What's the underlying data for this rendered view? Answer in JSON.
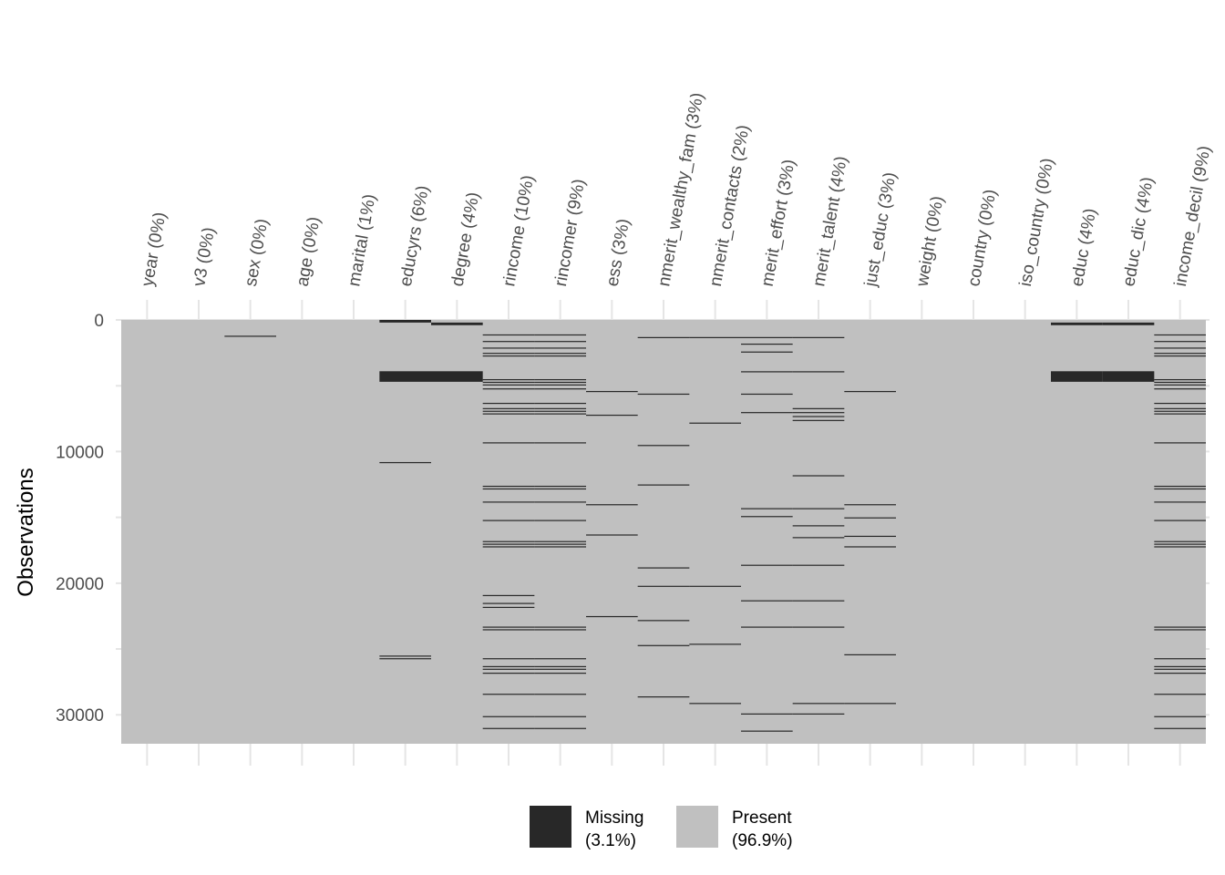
{
  "chart_data": {
    "type": "heatmap",
    "title": "",
    "xlabel": "",
    "ylabel": "Observations",
    "ylim": [
      0,
      32200
    ],
    "n_obs": 32200,
    "y_ticks": [
      0,
      10000,
      20000,
      30000
    ],
    "y_minor_ticks": [
      5000,
      15000,
      25000
    ],
    "grid": true,
    "colors": {
      "missing": "#282828",
      "present": "#c0c0c0",
      "grid": "#e5e5e5"
    },
    "columns": [
      "year (0%)",
      "v3 (0%)",
      "sex (0%)",
      "age (0%)",
      "marital (1%)",
      "educyrs (6%)",
      "degree (4%)",
      "rincome (10%)",
      "rincomer (9%)",
      "ess (3%)",
      "nmerit_wealthy_fam (3%)",
      "nmerit_contacts (2%)",
      "merit_effort (3%)",
      "merit_talent (4%)",
      "just_educ (3%)",
      "weight (0%)",
      "country (0%)",
      "iso_country (0%)",
      "educ (4%)",
      "educ_dic (4%)",
      "income_decil (9%)"
    ],
    "missing_rows": [
      [],
      [],
      [
        [
          1200,
          60
        ]
      ],
      [],
      [],
      [
        [
          0,
          200
        ],
        [
          3900,
          800
        ],
        [
          10800,
          60
        ],
        [
          25500,
          60
        ],
        [
          25700,
          60
        ]
      ],
      [
        [
          200,
          200
        ],
        [
          3900,
          800
        ]
      ],
      [
        [
          1100,
          60
        ],
        [
          1600,
          60
        ],
        [
          2100,
          60
        ],
        [
          2500,
          60
        ],
        [
          2700,
          60
        ],
        [
          4500,
          60
        ],
        [
          4700,
          60
        ],
        [
          4900,
          60
        ],
        [
          5200,
          60
        ],
        [
          6300,
          60
        ],
        [
          6700,
          60
        ],
        [
          6900,
          60
        ],
        [
          7100,
          60
        ],
        [
          9300,
          60
        ],
        [
          12600,
          60
        ],
        [
          12800,
          60
        ],
        [
          13800,
          60
        ],
        [
          15200,
          60
        ],
        [
          16800,
          60
        ],
        [
          17000,
          60
        ],
        [
          17200,
          60
        ],
        [
          20900,
          60
        ],
        [
          21500,
          60
        ],
        [
          21800,
          60
        ],
        [
          23300,
          60
        ],
        [
          23500,
          60
        ],
        [
          25700,
          60
        ],
        [
          26300,
          60
        ],
        [
          26500,
          60
        ],
        [
          26800,
          60
        ],
        [
          28400,
          60
        ],
        [
          30100,
          60
        ],
        [
          31000,
          60
        ]
      ],
      [
        [
          1100,
          60
        ],
        [
          1600,
          60
        ],
        [
          2100,
          60
        ],
        [
          2500,
          60
        ],
        [
          2700,
          60
        ],
        [
          4500,
          60
        ],
        [
          4700,
          60
        ],
        [
          4900,
          60
        ],
        [
          5200,
          60
        ],
        [
          6300,
          60
        ],
        [
          6700,
          60
        ],
        [
          6900,
          60
        ],
        [
          7100,
          60
        ],
        [
          9300,
          60
        ],
        [
          12600,
          60
        ],
        [
          12800,
          60
        ],
        [
          13800,
          60
        ],
        [
          15200,
          60
        ],
        [
          16800,
          60
        ],
        [
          17000,
          60
        ],
        [
          17200,
          60
        ],
        [
          23300,
          60
        ],
        [
          23500,
          60
        ],
        [
          25700,
          60
        ],
        [
          26300,
          60
        ],
        [
          26500,
          60
        ],
        [
          26800,
          60
        ],
        [
          28400,
          60
        ],
        [
          30100,
          60
        ],
        [
          31000,
          60
        ]
      ],
      [
        [
          5400,
          60
        ],
        [
          7200,
          60
        ],
        [
          14000,
          60
        ],
        [
          16300,
          60
        ],
        [
          22500,
          60
        ]
      ],
      [
        [
          1300,
          60
        ],
        [
          5600,
          60
        ],
        [
          9500,
          60
        ],
        [
          12500,
          60
        ],
        [
          18800,
          60
        ],
        [
          20200,
          60
        ],
        [
          22800,
          60
        ],
        [
          24700,
          60
        ],
        [
          28600,
          60
        ]
      ],
      [
        [
          1300,
          60
        ],
        [
          7800,
          60
        ],
        [
          20200,
          60
        ],
        [
          24600,
          60
        ],
        [
          29100,
          60
        ]
      ],
      [
        [
          1300,
          60
        ],
        [
          1800,
          60
        ],
        [
          2400,
          60
        ],
        [
          3900,
          60
        ],
        [
          5600,
          60
        ],
        [
          7000,
          60
        ],
        [
          14300,
          60
        ],
        [
          14900,
          60
        ],
        [
          18600,
          60
        ],
        [
          21300,
          60
        ],
        [
          23300,
          60
        ],
        [
          29900,
          60
        ],
        [
          31200,
          60
        ]
      ],
      [
        [
          1300,
          60
        ],
        [
          3900,
          60
        ],
        [
          6700,
          60
        ],
        [
          7000,
          60
        ],
        [
          7300,
          60
        ],
        [
          7600,
          60
        ],
        [
          11800,
          60
        ],
        [
          14300,
          60
        ],
        [
          15600,
          60
        ],
        [
          16500,
          60
        ],
        [
          18600,
          60
        ],
        [
          21300,
          60
        ],
        [
          23300,
          60
        ],
        [
          29100,
          60
        ],
        [
          29900,
          60
        ]
      ],
      [
        [
          5400,
          60
        ],
        [
          14000,
          60
        ],
        [
          15000,
          60
        ],
        [
          16400,
          60
        ],
        [
          17200,
          60
        ],
        [
          25400,
          60
        ],
        [
          29100,
          60
        ]
      ],
      [],
      [],
      [],
      [
        [
          200,
          200
        ],
        [
          3900,
          800
        ]
      ],
      [
        [
          200,
          200
        ],
        [
          3900,
          800
        ]
      ],
      [
        [
          1100,
          60
        ],
        [
          1600,
          60
        ],
        [
          2100,
          60
        ],
        [
          2500,
          60
        ],
        [
          2700,
          60
        ],
        [
          4500,
          60
        ],
        [
          4700,
          60
        ],
        [
          4900,
          60
        ],
        [
          5200,
          60
        ],
        [
          6300,
          60
        ],
        [
          6700,
          60
        ],
        [
          6900,
          60
        ],
        [
          7100,
          60
        ],
        [
          9300,
          60
        ],
        [
          12600,
          60
        ],
        [
          12800,
          60
        ],
        [
          13800,
          60
        ],
        [
          15200,
          60
        ],
        [
          16800,
          60
        ],
        [
          17000,
          60
        ],
        [
          17200,
          60
        ],
        [
          23300,
          60
        ],
        [
          23500,
          60
        ],
        [
          25700,
          60
        ],
        [
          26300,
          60
        ],
        [
          26500,
          60
        ],
        [
          26800,
          60
        ],
        [
          28400,
          60
        ],
        [
          30100,
          60
        ],
        [
          31000,
          60
        ]
      ]
    ],
    "legend": {
      "position": "bottom",
      "items": [
        {
          "label_line1": "Missing",
          "label_line2": "(3.1%)",
          "color": "#282828"
        },
        {
          "label_line1": "Present",
          "label_line2": "(96.9%)",
          "color": "#c0c0c0"
        }
      ]
    }
  }
}
